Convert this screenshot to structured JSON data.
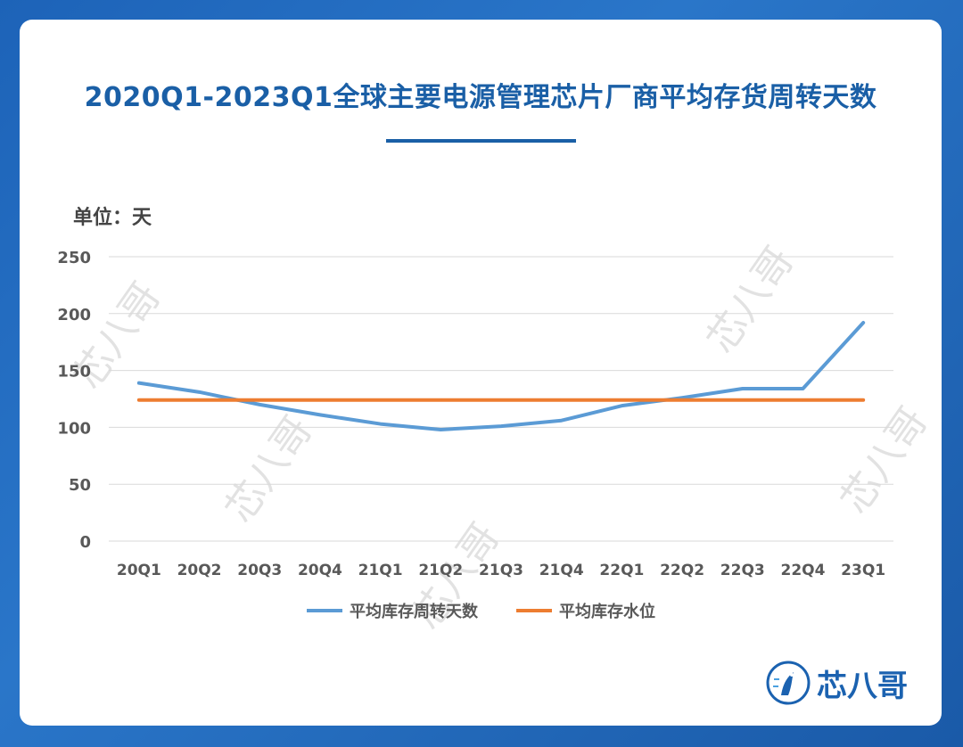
{
  "chart_data": {
    "type": "line",
    "title": "2020Q1-2023Q1全球主要电源管理芯片厂商平均存货周转天数",
    "unit_label": "单位：天",
    "categories": [
      "20Q1",
      "20Q2",
      "20Q3",
      "20Q4",
      "21Q1",
      "21Q2",
      "21Q3",
      "21Q4",
      "22Q1",
      "22Q2",
      "22Q3",
      "22Q4",
      "23Q1"
    ],
    "series": [
      {
        "name": "平均库存周转天数",
        "color": "#5b9bd5",
        "values": [
          139,
          131,
          120,
          111,
          103,
          98,
          101,
          106,
          119,
          126,
          134,
          134,
          192
        ]
      },
      {
        "name": "平均库存水位",
        "color": "#ed7d31",
        "values": [
          124,
          124,
          124,
          124,
          124,
          124,
          124,
          124,
          124,
          124,
          124,
          124,
          124
        ]
      }
    ],
    "yticks": [
      "250",
      "200",
      "150",
      "100",
      "50",
      "0"
    ],
    "ylim": [
      0,
      250
    ],
    "grid": true,
    "legend_position": "bottom"
  },
  "brand": {
    "name": "芯八哥"
  },
  "colors": {
    "title": "#1a5fa6",
    "background": "#1d63b8",
    "grid": "#d9d9d9",
    "axis_text": "#595959"
  }
}
